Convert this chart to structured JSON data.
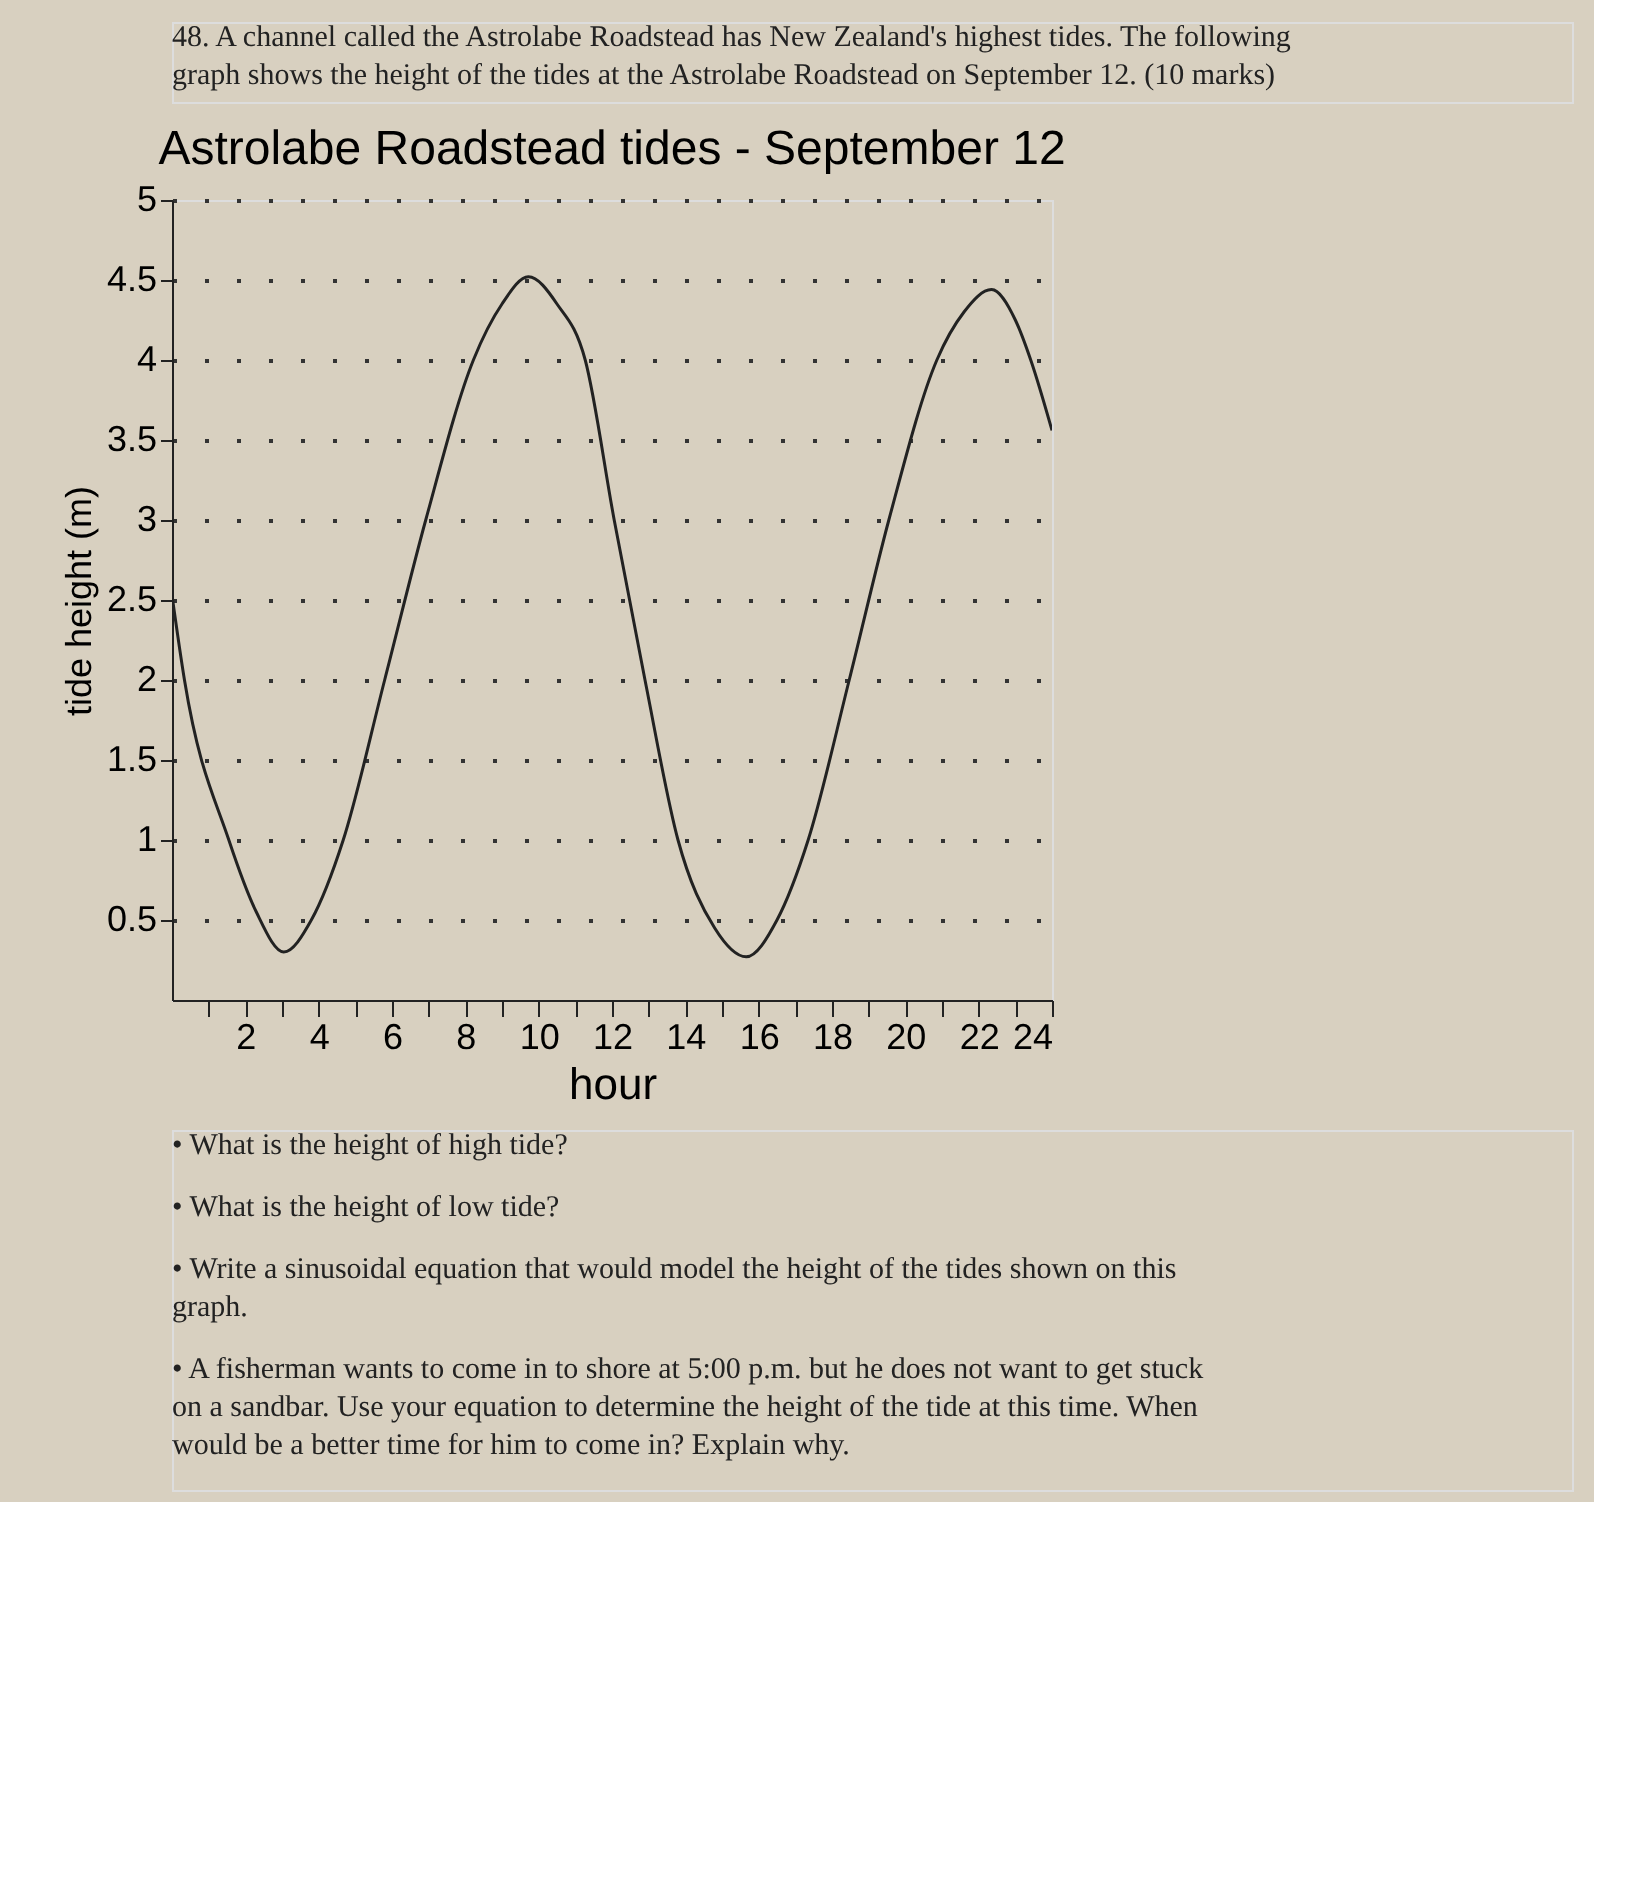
{
  "chart_data": {
    "type": "line",
    "title": "Astrolabe Roadstead tides - September 12",
    "xlabel": "hour",
    "ylabel": "tide height (m)",
    "x": [
      0,
      0.34,
      1.55,
      2.3,
      3.05,
      3.8,
      4.67,
      5.8,
      6.92,
      8.22,
      9.0,
      9.72,
      10.5,
      11.27,
      12.06,
      12.9,
      13.8,
      14.8,
      15.66,
      16.5,
      17.35,
      18.47,
      19.55,
      20.86,
      21.6,
      22.35,
      23.0,
      23.42,
      24
    ],
    "series": [
      {
        "color": "#222222",
        "values": [
          2.53,
          2,
          1,
          0.55,
          0.3,
          0.5,
          1,
          2,
          3,
          4,
          4.35,
          4.52,
          4.35,
          4,
          3,
          2,
          1,
          0.45,
          0.27,
          0.5,
          1,
          2,
          3,
          4,
          4.3,
          4.44,
          4.25,
          4,
          3.56
        ]
      }
    ],
    "xlim": [
      0,
      24
    ],
    "ylim": [
      0,
      5
    ],
    "xticks": [
      {
        "value": 1,
        "label": null
      },
      2,
      {
        "value": 3,
        "label": null
      },
      4,
      {
        "value": 5,
        "label": null
      },
      6,
      {
        "value": 7,
        "label": null
      },
      8,
      {
        "value": 9,
        "label": null
      },
      10,
      {
        "value": 11,
        "label": null
      },
      12,
      {
        "value": 13,
        "label": null
      },
      14,
      {
        "value": 15,
        "label": null
      },
      16,
      {
        "value": 17,
        "label": null
      },
      18,
      {
        "value": 19,
        "label": null
      },
      20,
      {
        "value": 21,
        "label": null
      },
      22,
      {
        "value": 23,
        "label": null
      },
      24
    ],
    "yticks": [
      0.5,
      1,
      1.5,
      2,
      2.5,
      3,
      3.5,
      4,
      4.5,
      5
    ],
    "grid": "y",
    "marker": "none",
    "line_style": "solid",
    "annotations": [
      "48. A channel called the Astrolabe Roadstead has New Zealand's highest tides. The following graph shows the height of the tides at the Astrolabe Roadstead on September 12. (10 marks)",
      "• What is the height of high tide?",
      "• What is the height of low tide?",
      "• Write a sinusoidal equation that would model the height of the tides shown on this graph.",
      "• A fisherman wants to come in to shore at 5:00 p.m. but he does not want to get stuck on a sandbar. Use your equation to determine the height of the tide at this time. When would be a better time for him to come in? Explain why."
    ]
  }
}
